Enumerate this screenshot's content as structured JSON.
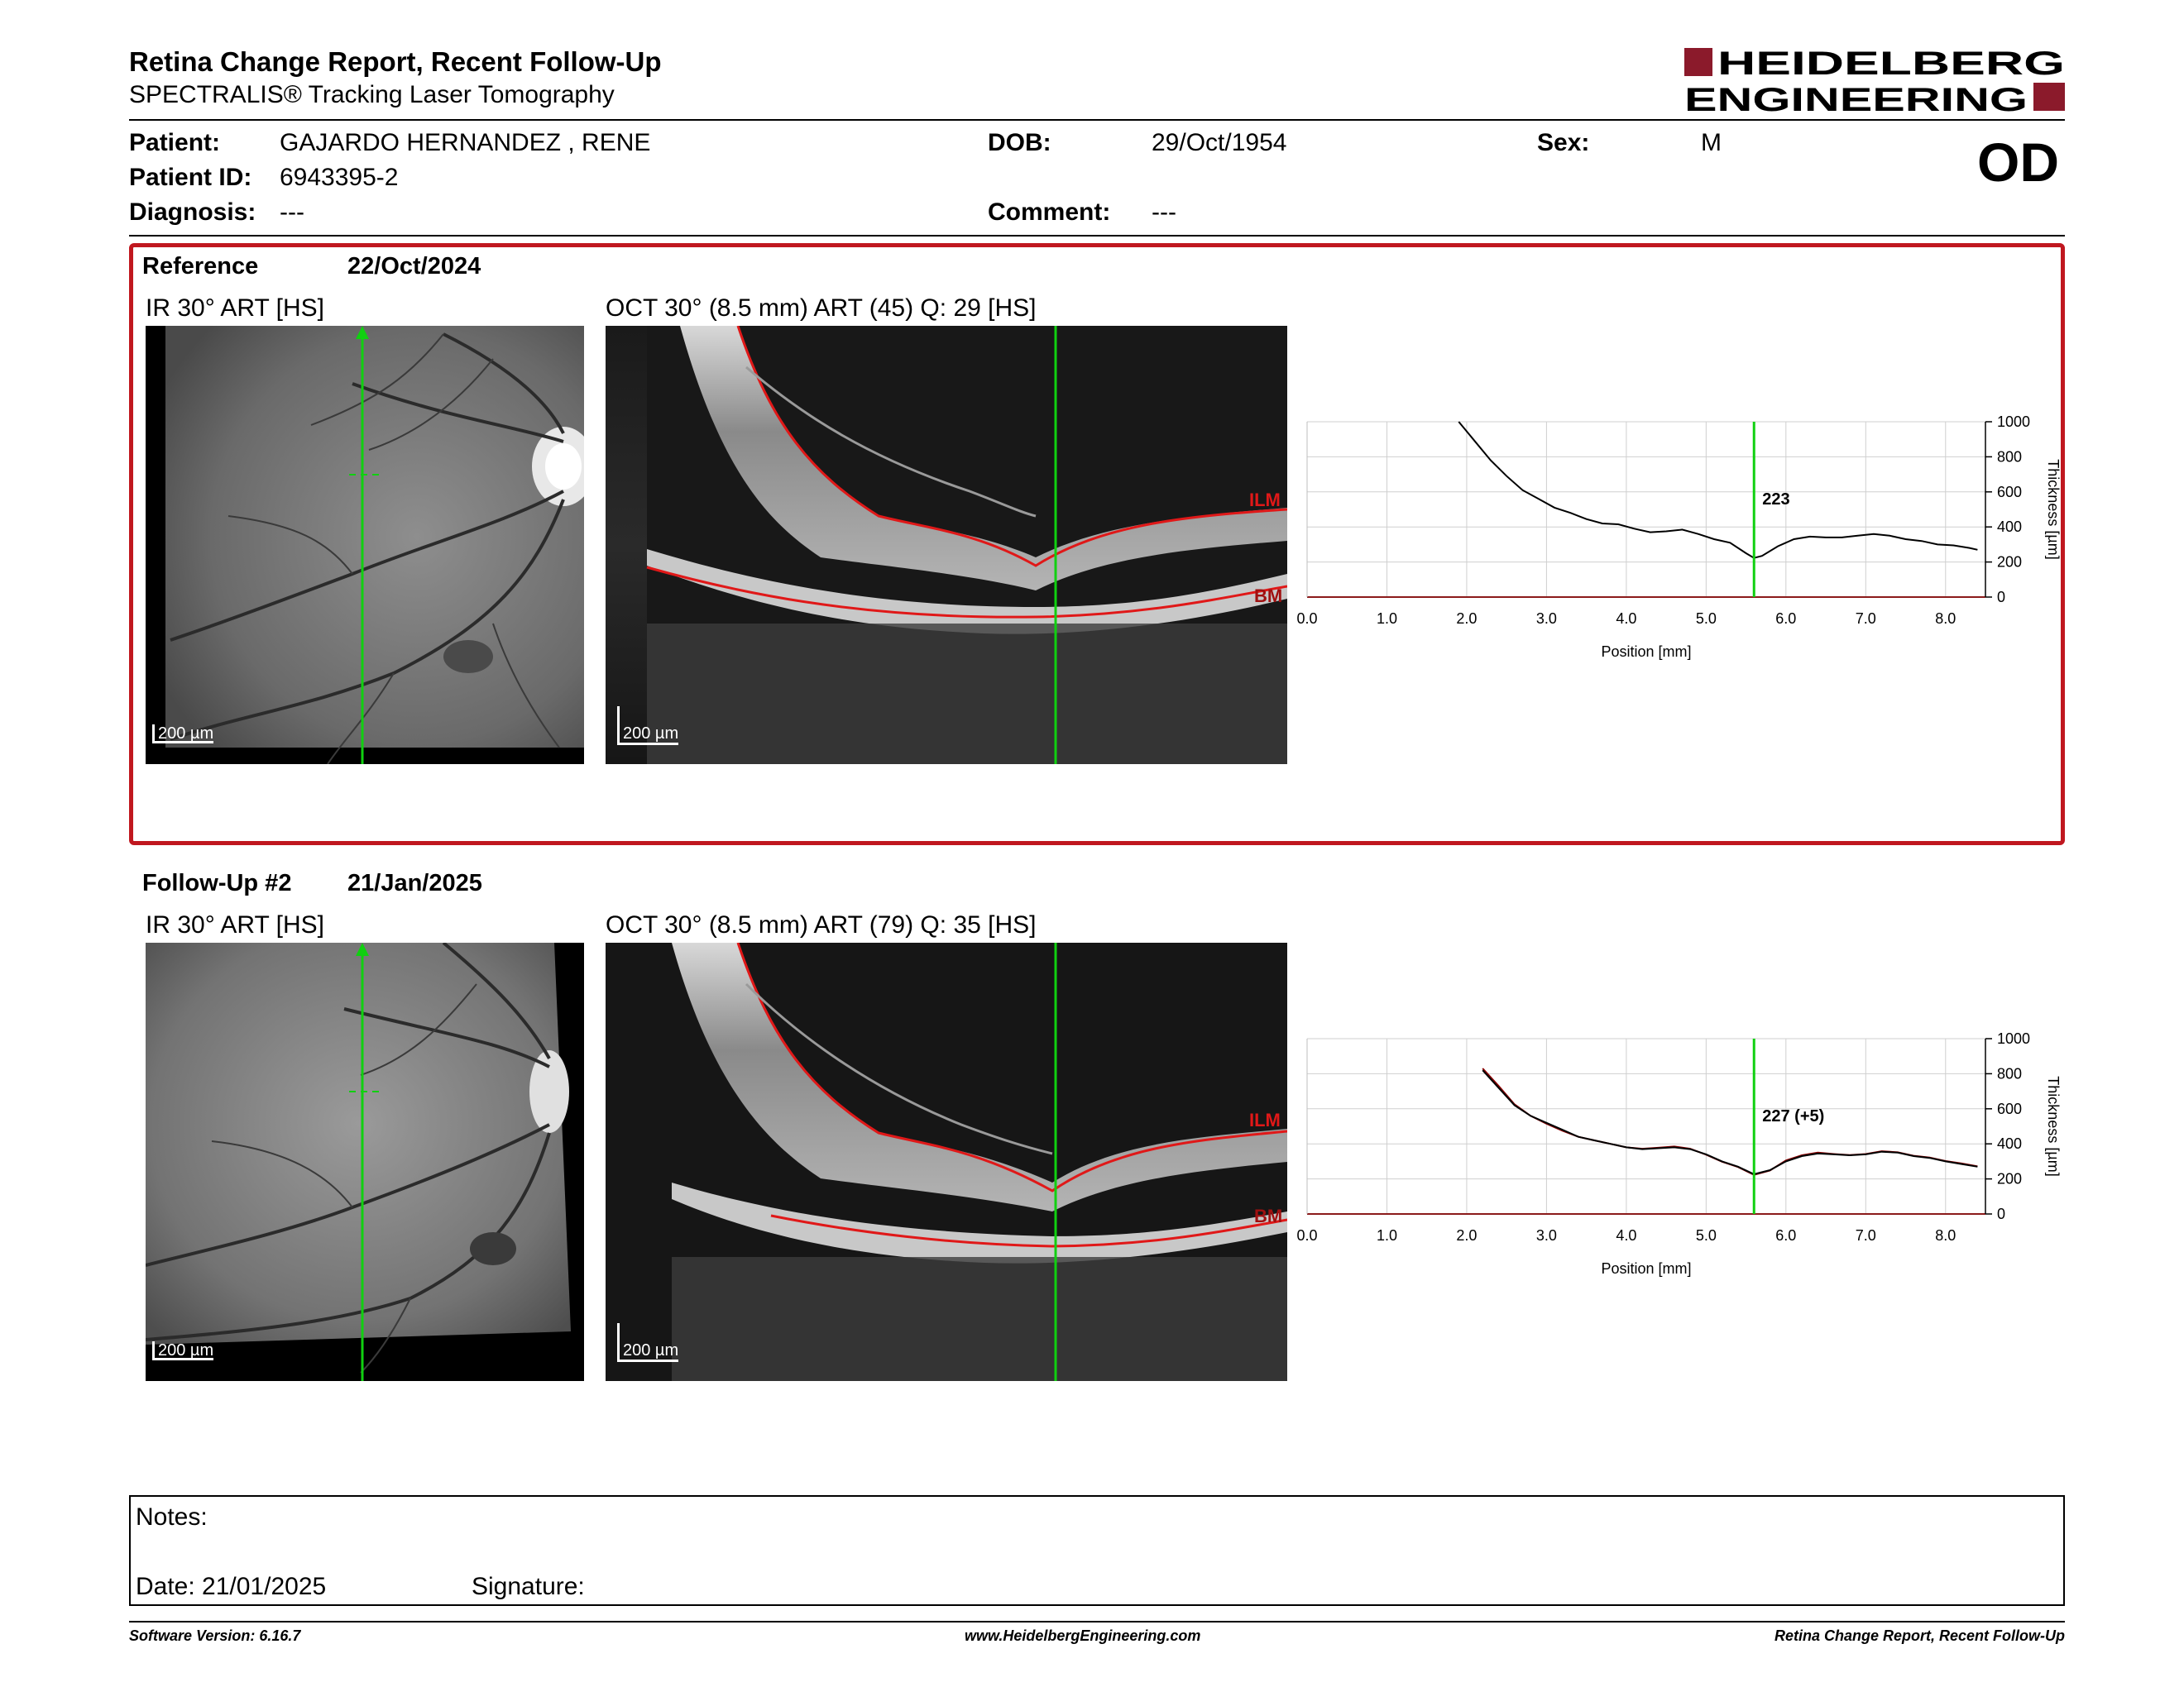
{
  "header": {
    "title": "Retina Change Report, Recent Follow-Up",
    "subtitle": "SPECTRALIS® Tracking Laser Tomography",
    "logo_line1": "HEIDELBERG",
    "logo_line2": "ENGINEERING",
    "eye": "OD"
  },
  "patient": {
    "patient_label": "Patient:",
    "patient_value": "GAJARDO HERNANDEZ , RENE",
    "id_label": "Patient ID:",
    "id_value": "6943395-2",
    "diagnosis_label": "Diagnosis:",
    "diagnosis_value": "---",
    "dob_label": "DOB:",
    "dob_value": "29/Oct/1954",
    "comment_label": "Comment:",
    "comment_value": "---",
    "sex_label": "Sex:",
    "sex_value": "M"
  },
  "reference": {
    "label": "Reference",
    "date": "22/Oct/2024",
    "ir_title": "IR 30° ART [HS]",
    "oct_title": "OCT 30° (8.5 mm) ART (45) Q: 29 [HS]",
    "ir_scale": "200 µm",
    "oct_scale": "200 µm",
    "ilm": "ILM",
    "bm": "BM"
  },
  "followup": {
    "label": "Follow-Up #2",
    "date": "21/Jan/2025",
    "ir_title": "IR 30° ART [HS]",
    "oct_title": "OCT 30° (8.5 mm) ART (79) Q: 35 [HS]",
    "ir_scale": "200 µm",
    "oct_scale": "200 µm",
    "ilm": "ILM",
    "bm": "BM"
  },
  "chart_data": [
    {
      "type": "line",
      "xlabel": "Position [mm]",
      "ylabel": "Thickness [µm]",
      "xlim": [
        0.0,
        8.5
      ],
      "ylim": [
        0,
        1000
      ],
      "x_ticks": [
        "0.0",
        "1.0",
        "2.0",
        "3.0",
        "4.0",
        "5.0",
        "6.0",
        "7.0",
        "8.0"
      ],
      "y_ticks": [
        "0",
        "200",
        "400",
        "600",
        "800",
        "1000"
      ],
      "grid": true,
      "marker_x": 5.6,
      "marker_label": "223",
      "series": [
        {
          "x": [
            1.9,
            2.1,
            2.3,
            2.5,
            2.7,
            2.9,
            3.1,
            3.3,
            3.5,
            3.7,
            3.9,
            4.1,
            4.3,
            4.5,
            4.7,
            4.9,
            5.1,
            5.3,
            5.5,
            5.6,
            5.7,
            5.9,
            6.1,
            6.3,
            6.5,
            6.7,
            6.9,
            7.1,
            7.3,
            7.5,
            7.7,
            7.9,
            8.1,
            8.3,
            8.4
          ],
          "y": [
            1000,
            890,
            780,
            690,
            610,
            560,
            510,
            480,
            445,
            420,
            415,
            390,
            370,
            375,
            385,
            360,
            330,
            310,
            250,
            223,
            235,
            290,
            330,
            345,
            340,
            340,
            350,
            360,
            350,
            330,
            320,
            300,
            295,
            280,
            270
          ],
          "color": "#000000"
        }
      ]
    },
    {
      "type": "line",
      "xlabel": "Position [mm]",
      "ylabel": "Thickness [µm]",
      "xlim": [
        0.0,
        8.5
      ],
      "ylim": [
        0,
        1000
      ],
      "x_ticks": [
        "0.0",
        "1.0",
        "2.0",
        "3.0",
        "4.0",
        "5.0",
        "6.0",
        "7.0",
        "8.0"
      ],
      "y_ticks": [
        "0",
        "200",
        "400",
        "600",
        "800",
        "1000"
      ],
      "grid": true,
      "marker_x": 5.6,
      "marker_label": "227 (+5)",
      "series": [
        {
          "x": [
            2.2,
            2.4,
            2.6,
            2.8,
            3.0,
            3.2,
            3.4,
            3.6,
            3.8,
            4.0,
            4.2,
            4.4,
            4.6,
            4.8,
            5.0,
            5.2,
            5.4,
            5.6,
            5.8,
            6.0,
            6.2,
            6.4,
            6.6,
            6.8,
            7.0,
            7.2,
            7.4,
            7.6,
            7.8,
            8.0,
            8.2,
            8.4
          ],
          "y": [
            820,
            720,
            620,
            560,
            520,
            480,
            440,
            420,
            400,
            380,
            370,
            375,
            380,
            370,
            340,
            300,
            270,
            227,
            250,
            300,
            330,
            345,
            340,
            335,
            340,
            355,
            350,
            330,
            320,
            300,
            285,
            270
          ],
          "color": "#000000"
        },
        {
          "x": [
            2.2,
            2.4,
            2.6,
            2.8,
            3.0,
            3.2,
            3.4,
            3.6,
            3.8,
            4.0,
            4.2,
            4.4,
            4.6,
            4.8,
            5.0,
            5.2,
            5.4,
            5.6,
            5.8,
            6.0,
            6.2,
            6.4,
            6.6,
            6.8,
            7.0,
            7.2,
            7.4,
            7.6,
            7.8,
            8.0,
            8.2,
            8.4
          ],
          "y": [
            830,
            730,
            625,
            560,
            515,
            475,
            440,
            420,
            400,
            380,
            372,
            378,
            385,
            372,
            338,
            298,
            268,
            223,
            248,
            305,
            335,
            350,
            342,
            336,
            342,
            358,
            352,
            332,
            322,
            302,
            288,
            272
          ],
          "color": "#8b0000"
        }
      ]
    }
  ],
  "notes": {
    "notes_label": "Notes:",
    "date_label": "Date: 21/01/2025",
    "signature_label": "Signature:"
  },
  "footer": {
    "software": "Software Version: 6.16.7",
    "website": "www.HeidelbergEngineering.com",
    "report": "Retina Change Report, Recent Follow-Up"
  }
}
